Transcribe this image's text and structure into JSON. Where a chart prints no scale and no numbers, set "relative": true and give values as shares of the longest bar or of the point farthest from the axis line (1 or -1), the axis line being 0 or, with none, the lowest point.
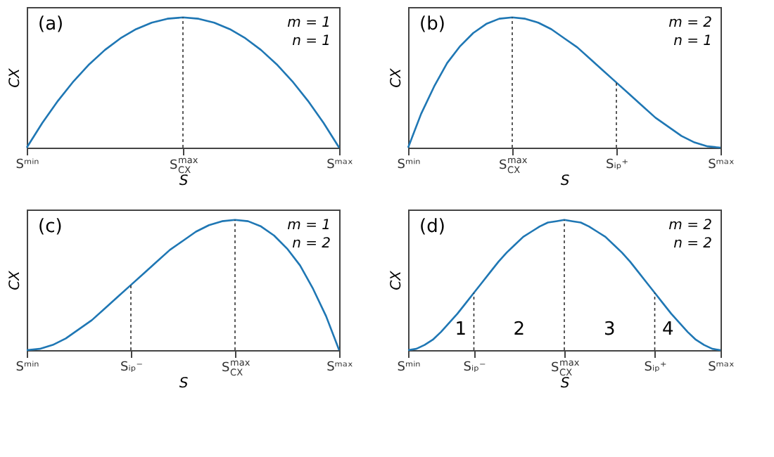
{
  "chart_data": [
    {
      "type": "line",
      "relative": true,
      "xlabel": "S",
      "ylabel": "CX",
      "tick_labels": "x",
      "categories": [
        "Sᵐⁱⁿ",
        null,
        null,
        null,
        null,
        null,
        null,
        null,
        null,
        null,
        "S$_{CX}$$^{max}$",
        null,
        null,
        null,
        null,
        null,
        null,
        null,
        null,
        null,
        "Sᵐᵃˣ"
      ],
      "annotations": [
        "(a)",
        "m = 1",
        "n = 1"
      ],
      "ref_lines": [
        {
          "axis": "x",
          "value": "S$_{CX}$$^{max}$",
          "line_style": "dotted"
        }
      ],
      "series": [
        {
          "color": "#1f77b4",
          "values": [
            0,
            0.19,
            0.36,
            0.51,
            0.64,
            0.75,
            0.84,
            0.91,
            0.96,
            0.99,
            1,
            0.99,
            0.96,
            0.91,
            0.84,
            0.75,
            0.64,
            0.51,
            0.36,
            0.19,
            0
          ]
        }
      ]
    },
    {
      "type": "line",
      "relative": true,
      "xlabel": "S",
      "ylabel": "CX",
      "tick_labels": "x",
      "categories": [
        "Sᵐⁱⁿ",
        null,
        null,
        null,
        null,
        null,
        null,
        null,
        "S$_{CX}$$^{max}$",
        null,
        null,
        null,
        null,
        null,
        null,
        null,
        "Sᵢₚ⁺",
        null,
        null,
        null,
        null,
        null,
        null,
        null,
        "Sᵐᵃˣ"
      ],
      "annotations": [
        "(b)",
        "m = 2",
        "n = 1"
      ],
      "ref_lines": [
        {
          "axis": "x",
          "value": "S$_{CX}$$^{max}$",
          "line_style": "dotted"
        },
        {
          "axis": "x",
          "value": "Sᵢₚ⁺",
          "line_style": "dotted"
        }
      ],
      "series": [
        {
          "color": "#1f77b4",
          "values": [
            0,
            0.26,
            0.47,
            0.65,
            0.78,
            0.88,
            0.95,
            0.99,
            1,
            0.99,
            0.96,
            0.91,
            0.84,
            0.77,
            0.68,
            0.59,
            0.5,
            0.41,
            0.32,
            0.23,
            0.16,
            0.09,
            0.04,
            0.01,
            0
          ]
        }
      ]
    },
    {
      "type": "line",
      "relative": true,
      "xlabel": "S",
      "ylabel": "CX",
      "tick_labels": "x",
      "categories": [
        "Sᵐⁱⁿ",
        null,
        null,
        null,
        null,
        null,
        null,
        null,
        "Sᵢₚ⁻",
        null,
        null,
        null,
        null,
        null,
        null,
        null,
        "S$_{CX}$$^{max}$",
        null,
        null,
        null,
        null,
        null,
        null,
        null,
        "Sᵐᵃˣ"
      ],
      "annotations": [
        "(c)",
        "m = 1",
        "n = 2"
      ],
      "ref_lines": [
        {
          "axis": "x",
          "value": "Sᵢₚ⁻",
          "line_style": "dotted"
        },
        {
          "axis": "x",
          "value": "S$_{CX}$$^{max}$",
          "line_style": "dotted"
        }
      ],
      "series": [
        {
          "color": "#1f77b4",
          "values": [
            0,
            0.01,
            0.04,
            0.09,
            0.16,
            0.23,
            0.32,
            0.41,
            0.5,
            0.59,
            0.68,
            0.77,
            0.84,
            0.91,
            0.96,
            0.99,
            1,
            0.99,
            0.95,
            0.88,
            0.78,
            0.65,
            0.47,
            0.26,
            0
          ]
        }
      ]
    },
    {
      "type": "line",
      "relative": true,
      "xlabel": "S",
      "ylabel": "CX",
      "tick_labels": "x",
      "categories": [
        "Sᵐⁱⁿ",
        null,
        null,
        null,
        null,
        null,
        null,
        null,
        "Sᵢₚ⁻",
        null,
        null,
        null,
        null,
        null,
        null,
        null,
        null,
        null,
        null,
        "S$_{CX}$$^{max}$",
        null,
        null,
        null,
        null,
        null,
        null,
        null,
        null,
        null,
        null,
        "Sᵢₚ⁺",
        null,
        null,
        null,
        null,
        null,
        null,
        null,
        "Sᵐᵃˣ"
      ],
      "annotations": [
        "(d)",
        "m = 2",
        "n = 2",
        "1",
        "2",
        "3",
        "4"
      ],
      "ref_lines": [
        {
          "axis": "x",
          "value": "Sᵢₚ⁻",
          "line_style": "dotted"
        },
        {
          "axis": "x",
          "value": "S$_{CX}$$^{max}$",
          "line_style": "dotted"
        },
        {
          "axis": "x",
          "value": "Sᵢₚ⁺",
          "line_style": "dotted"
        }
      ],
      "series": [
        {
          "color": "#1f77b4",
          "values": [
            0,
            0.01,
            0.04,
            0.08,
            0.14,
            0.21,
            0.28,
            0.36,
            0.44,
            0.52,
            0.6,
            0.68,
            0.75,
            0.81,
            0.87,
            0.91,
            0.95,
            0.98,
            0.99,
            1,
            0.99,
            0.98,
            0.95,
            0.91,
            0.87,
            0.81,
            0.75,
            0.68,
            0.6,
            0.52,
            0.44,
            0.36,
            0.28,
            0.21,
            0.14,
            0.08,
            0.04,
            0.01,
            0
          ]
        }
      ]
    }
  ]
}
